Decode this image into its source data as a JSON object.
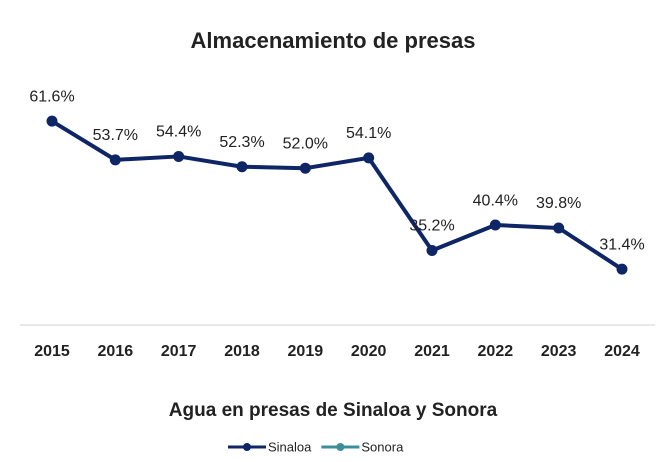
{
  "chart_data": {
    "type": "line",
    "title": "Almacenamiento de presas",
    "x_label": "Agua en presas de Sinaloa y Sonora",
    "categories": [
      "2015",
      "2016",
      "2017",
      "2018",
      "2019",
      "2020",
      "2021",
      "2022",
      "2023",
      "2024"
    ],
    "series": [
      {
        "name": "Sinaloa",
        "color": "#0e2566",
        "values": [
          61.6,
          53.7,
          54.4,
          52.3,
          52.0,
          54.1,
          35.2,
          40.4,
          39.8,
          31.4
        ],
        "value_labels": [
          "61.6%",
          "53.7%",
          "54.4%",
          "52.3%",
          "52.0%",
          "54.1%",
          "35.2%",
          "40.4%",
          "39.8%",
          "31.4%"
        ]
      },
      {
        "name": "Sonora",
        "color": "#3a8f99",
        "values": [
          null,
          null,
          null,
          null,
          null,
          null,
          null,
          null,
          null,
          null
        ]
      }
    ],
    "ylim": [
      20,
      70
    ],
    "legend": "bottom"
  }
}
